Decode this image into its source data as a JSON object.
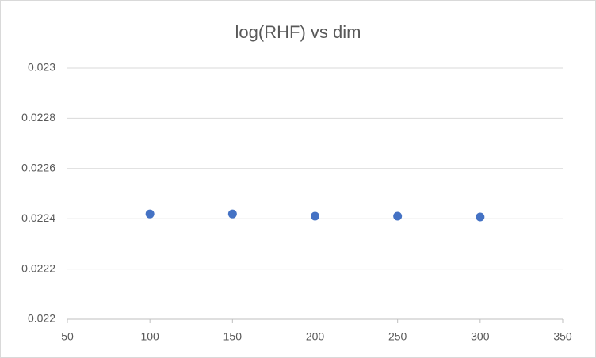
{
  "chart_data": {
    "type": "scatter",
    "title": "log(RHF) vs dim",
    "x": [
      100,
      150,
      200,
      250,
      300
    ],
    "values": [
      0.022419,
      0.022419,
      0.02241,
      0.02241,
      0.022407
    ],
    "color": "#4472c4",
    "xlim": [
      50,
      350
    ],
    "xticks": [
      50,
      100,
      150,
      200,
      250,
      300,
      350
    ],
    "ylim": [
      0.022,
      0.023
    ],
    "yticks": [
      0.022,
      0.0222,
      0.0224,
      0.0226,
      0.0228,
      0.023
    ],
    "grid": true
  }
}
